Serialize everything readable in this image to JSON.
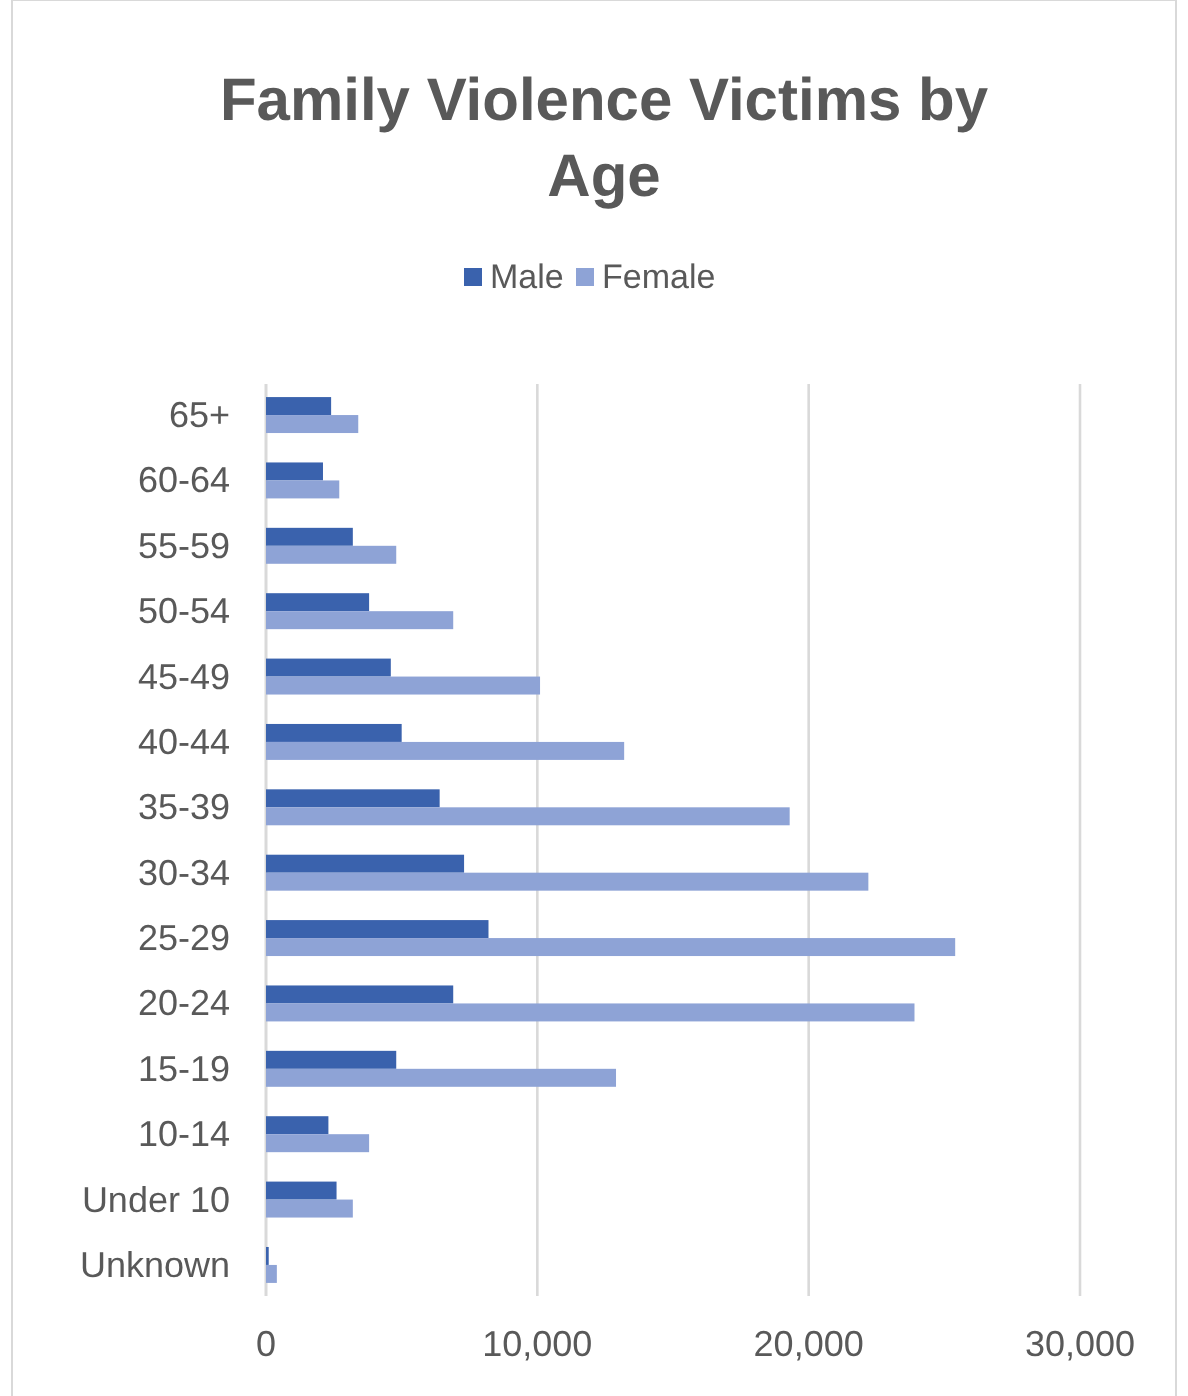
{
  "chart_data": {
    "type": "bar",
    "orientation": "horizontal",
    "title": "Family Violence Victims by Age",
    "categories": [
      "65+",
      "60-64",
      "55-59",
      "50-54",
      "45-49",
      "40-44",
      "35-39",
      "30-34",
      "25-29",
      "20-24",
      "15-19",
      "10-14",
      "Under 10",
      "Unknown"
    ],
    "series": [
      {
        "name": "Male",
        "color": "#3a62ad",
        "values": [
          2400,
          2100,
          3200,
          3800,
          4600,
          5000,
          6400,
          7300,
          8200,
          6900,
          4800,
          2300,
          2600,
          100
        ]
      },
      {
        "name": "Female",
        "color": "#8ea3d6",
        "values": [
          3400,
          2700,
          4800,
          6900,
          10100,
          13200,
          19300,
          22200,
          25400,
          23900,
          12900,
          3800,
          3200,
          400
        ]
      }
    ],
    "xlim": [
      0,
      30000
    ],
    "xticks": [
      {
        "value": 0,
        "label": "0"
      },
      {
        "value": 10000,
        "label": "10,000"
      },
      {
        "value": 20000,
        "label": "20,000"
      },
      {
        "value": 30000,
        "label": "30,000"
      }
    ],
    "grid": "x",
    "legend": "top"
  }
}
